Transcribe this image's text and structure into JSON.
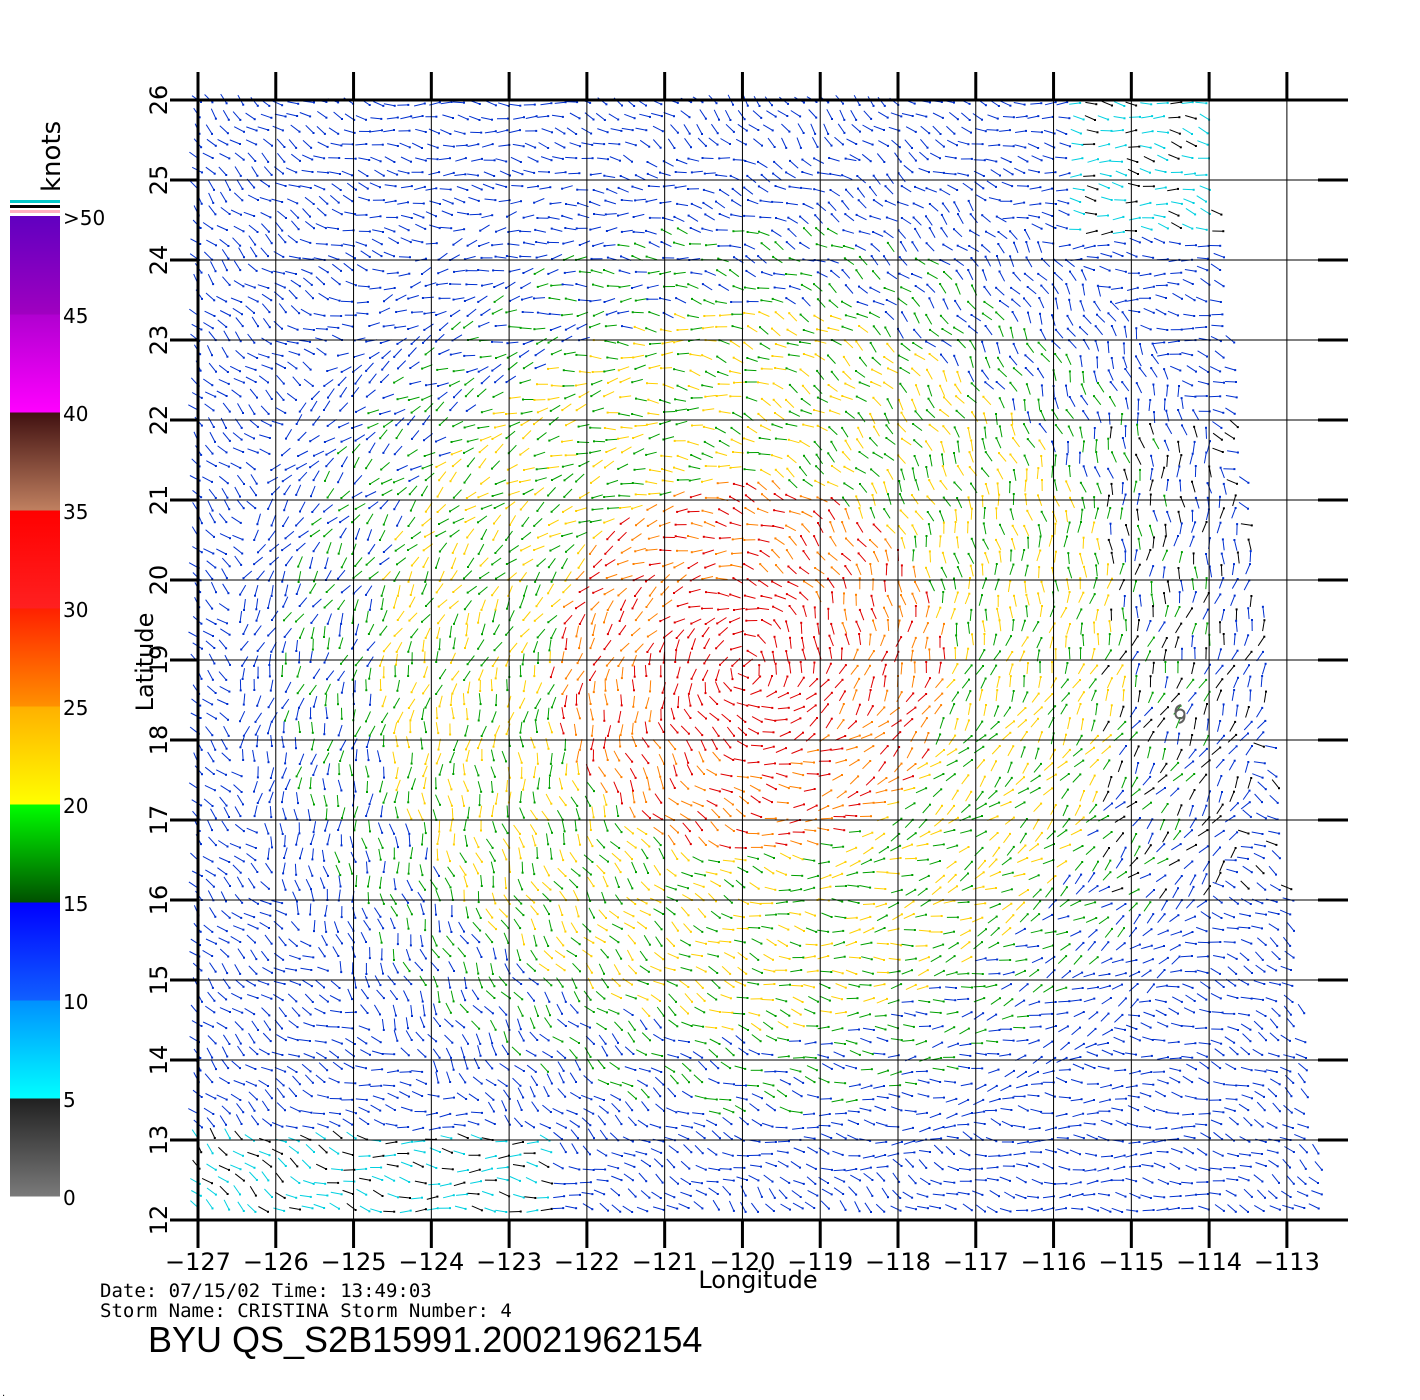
{
  "map": {
    "x_label": "Longitude",
    "y_label": "Latitude",
    "lon_ticks": [
      "-127",
      "-126",
      "-125",
      "-124",
      "-123",
      "-122",
      "-121",
      "-120",
      "-119",
      "-118",
      "-117",
      "-116",
      "-115",
      "-114",
      "-113"
    ],
    "lat_ticks": [
      "12",
      "13",
      "14",
      "15",
      "16",
      "17",
      "18",
      "19",
      "20",
      "21",
      "22",
      "23",
      "24",
      "25",
      "26"
    ],
    "lon_range": [
      -127.0,
      -112.6
    ],
    "lat_range": [
      12.0,
      26.0
    ],
    "grid": true,
    "storm_center_marker": "storm-symbol-icon"
  },
  "colorbar": {
    "unit_label": "knots",
    "tick_labels": [
      "0",
      "5",
      "10",
      "15",
      "20",
      "25",
      "30",
      "35",
      "40",
      "45",
      ">50"
    ],
    "segments": [
      {
        "from": 0,
        "to": 5,
        "colors": [
          "#7a7a7a",
          "#202020"
        ]
      },
      {
        "from": 5,
        "to": 10,
        "colors": [
          "#00ffff",
          "#0090ff"
        ]
      },
      {
        "from": 10,
        "to": 15,
        "colors": [
          "#1060ff",
          "#0000ff"
        ]
      },
      {
        "from": 15,
        "to": 20,
        "colors": [
          "#005000",
          "#00ff00"
        ]
      },
      {
        "from": 20,
        "to": 25,
        "colors": [
          "#ffff00",
          "#ffb000"
        ]
      },
      {
        "from": 25,
        "to": 30,
        "colors": [
          "#ff9000",
          "#ff2000"
        ]
      },
      {
        "from": 30,
        "to": 35,
        "colors": [
          "#ff2020",
          "#ff0000"
        ]
      },
      {
        "from": 35,
        "to": 40,
        "colors": [
          "#c08060",
          "#401010"
        ]
      },
      {
        "from": 40,
        "to": 45,
        "colors": [
          "#ff00ff",
          "#b000d0"
        ]
      },
      {
        "from": 45,
        "to": 50,
        "colors": [
          "#a000c0",
          "#6000c0"
        ]
      }
    ],
    "top_stripes": [
      "#00c8c8",
      "#000000",
      "#ffb0c0"
    ]
  },
  "wind_speed_colors": {
    "calm": "#000000",
    "light": "#00d0e0",
    "moderate": "#0030d0",
    "fresh": "#00a000",
    "strong": "#ffd000",
    "gale": "#ff8000",
    "storm": "#e00000"
  },
  "footer": {
    "date_line": "Date: 07/15/02   Time: 13:49:03",
    "storm_line": "Storm Name: CRISTINA   Storm Number: 4",
    "product_id": "BYU  QS_S2B15991.20021962154"
  }
}
